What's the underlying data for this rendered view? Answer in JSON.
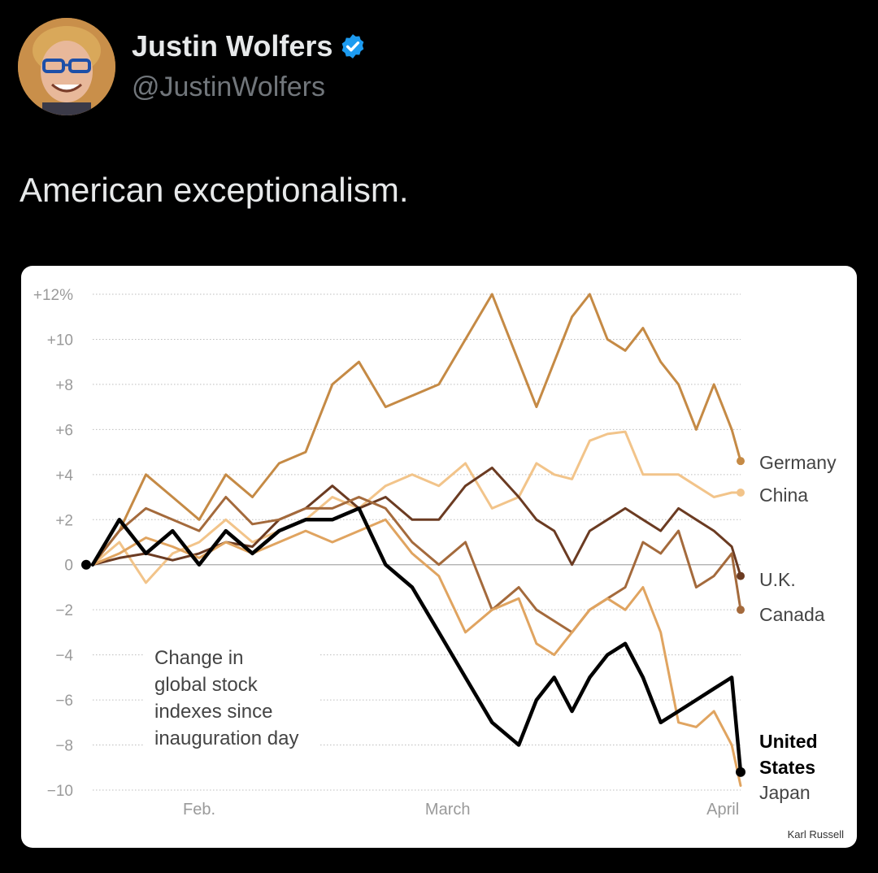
{
  "post": {
    "author_name": "Justin Wolfers",
    "handle": "@JustinWolfers",
    "verified": true,
    "text": "American exceptionalism.",
    "avatar_icon": "profile-photo",
    "verified_icon": "verified-badge-icon"
  },
  "colors": {
    "background": "#000000",
    "text_primary": "#e7e9ea",
    "text_secondary": "#71767b",
    "verified": "#1d9bf0"
  },
  "chart_data": {
    "type": "line",
    "annotation": "Change in global stock indexes since inauguration day",
    "annotation_lines": [
      "Change in",
      "global stock",
      "indexes since",
      "inauguration day"
    ],
    "credit": "Karl Russell",
    "x_ticks": [
      "Feb.",
      "March",
      "April"
    ],
    "y_ticks": [
      "+12%",
      "+10",
      "+8",
      "+6",
      "+4",
      "+2",
      "0",
      "−2",
      "−4",
      "−6",
      "−8",
      "−10"
    ],
    "ylim": [
      -10,
      12
    ],
    "x_range": [
      "2025-01-20",
      "2025-04-03"
    ],
    "grid": true,
    "series": [
      {
        "name": "Germany",
        "color": "#c58a45",
        "width": 3,
        "dot": true,
        "x": [
          "2025-01-20",
          "2025-01-23",
          "2025-01-26",
          "2025-01-29",
          "2025-02-01",
          "2025-02-04",
          "2025-02-07",
          "2025-02-10",
          "2025-02-13",
          "2025-02-16",
          "2025-02-19",
          "2025-02-22",
          "2025-02-25",
          "2025-02-28",
          "2025-03-03",
          "2025-03-06",
          "2025-03-09",
          "2025-03-11",
          "2025-03-13",
          "2025-03-15",
          "2025-03-17",
          "2025-03-19",
          "2025-03-21",
          "2025-03-23",
          "2025-03-25",
          "2025-03-27",
          "2025-03-29",
          "2025-03-31",
          "2025-04-01",
          "2025-04-02",
          "2025-04-03"
        ],
        "y": [
          0,
          1.5,
          4,
          3,
          2,
          4,
          3,
          4.5,
          5,
          8,
          9,
          7,
          7.5,
          8,
          10,
          12,
          9,
          7,
          9,
          11,
          12,
          10,
          9.5,
          10.5,
          9,
          8,
          6,
          8,
          7,
          6,
          4.6
        ]
      },
      {
        "name": "China",
        "color": "#f2c48a",
        "width": 3,
        "dot": true,
        "x": [
          "2025-01-20",
          "2025-01-23",
          "2025-01-26",
          "2025-01-29",
          "2025-02-01",
          "2025-02-04",
          "2025-02-07",
          "2025-02-10",
          "2025-02-13",
          "2025-02-16",
          "2025-02-19",
          "2025-02-22",
          "2025-02-25",
          "2025-02-28",
          "2025-03-03",
          "2025-03-06",
          "2025-03-09",
          "2025-03-11",
          "2025-03-13",
          "2025-03-15",
          "2025-03-17",
          "2025-03-19",
          "2025-03-21",
          "2025-03-23",
          "2025-03-25",
          "2025-03-27",
          "2025-03-29",
          "2025-03-31",
          "2025-04-02",
          "2025-04-03"
        ],
        "y": [
          0,
          1,
          -0.8,
          0.5,
          1,
          2,
          1,
          1.5,
          2,
          3,
          2.5,
          3.5,
          4,
          3.5,
          4.5,
          2.5,
          3,
          4.5,
          4,
          3.8,
          5.5,
          5.8,
          5.9,
          4,
          4,
          4,
          3.5,
          3,
          3.2,
          3.2
        ]
      },
      {
        "name": "U.K.",
        "color": "#6b3b22",
        "width": 3,
        "dot": true,
        "x": [
          "2025-01-20",
          "2025-01-23",
          "2025-01-26",
          "2025-01-29",
          "2025-02-01",
          "2025-02-04",
          "2025-02-07",
          "2025-02-10",
          "2025-02-13",
          "2025-02-16",
          "2025-02-19",
          "2025-02-22",
          "2025-02-25",
          "2025-02-28",
          "2025-03-03",
          "2025-03-06",
          "2025-03-09",
          "2025-03-11",
          "2025-03-13",
          "2025-03-15",
          "2025-03-17",
          "2025-03-19",
          "2025-03-21",
          "2025-03-23",
          "2025-03-25",
          "2025-03-27",
          "2025-03-29",
          "2025-03-31",
          "2025-04-02",
          "2025-04-03"
        ],
        "y": [
          0,
          0.3,
          0.5,
          0.2,
          0.5,
          1,
          0.8,
          2,
          2.5,
          3.5,
          2.5,
          3,
          2,
          2,
          3.5,
          4.3,
          3,
          2,
          1.5,
          0,
          1.5,
          2,
          2.5,
          2,
          1.5,
          2.5,
          2,
          1.5,
          0.8,
          -0.5
        ]
      },
      {
        "name": "Canada",
        "color": "#a46a3c",
        "width": 3,
        "dot": true,
        "x": [
          "2025-01-20",
          "2025-01-23",
          "2025-01-26",
          "2025-01-29",
          "2025-02-01",
          "2025-02-04",
          "2025-02-07",
          "2025-02-10",
          "2025-02-13",
          "2025-02-16",
          "2025-02-19",
          "2025-02-22",
          "2025-02-25",
          "2025-02-28",
          "2025-03-03",
          "2025-03-06",
          "2025-03-09",
          "2025-03-11",
          "2025-03-13",
          "2025-03-15",
          "2025-03-17",
          "2025-03-19",
          "2025-03-21",
          "2025-03-23",
          "2025-03-25",
          "2025-03-27",
          "2025-03-29",
          "2025-03-31",
          "2025-04-02",
          "2025-04-03"
        ],
        "y": [
          0,
          1.5,
          2.5,
          2,
          1.5,
          3,
          1.8,
          2,
          2.5,
          2.5,
          3,
          2.5,
          1,
          0,
          1,
          -2,
          -1,
          -2,
          -2.5,
          -3,
          -2,
          -1.5,
          -1,
          1,
          0.5,
          1.5,
          -1,
          -0.5,
          0.5,
          -2
        ]
      },
      {
        "name": "Japan",
        "color": "#e0a460",
        "width": 3,
        "dot": false,
        "x": [
          "2025-01-20",
          "2025-01-23",
          "2025-01-26",
          "2025-01-29",
          "2025-02-01",
          "2025-02-04",
          "2025-02-07",
          "2025-02-10",
          "2025-02-13",
          "2025-02-16",
          "2025-02-19",
          "2025-02-22",
          "2025-02-25",
          "2025-02-28",
          "2025-03-03",
          "2025-03-06",
          "2025-03-09",
          "2025-03-11",
          "2025-03-13",
          "2025-03-15",
          "2025-03-17",
          "2025-03-19",
          "2025-03-21",
          "2025-03-23",
          "2025-03-25",
          "2025-03-27",
          "2025-03-29",
          "2025-03-31",
          "2025-04-02",
          "2025-04-03"
        ],
        "y": [
          0,
          0.5,
          1.2,
          0.8,
          0.3,
          1,
          0.5,
          1,
          1.5,
          1,
          1.5,
          2,
          0.5,
          -0.5,
          -3,
          -2,
          -1.5,
          -3.5,
          -4,
          -3,
          -2,
          -1.5,
          -2,
          -1,
          -3,
          -7,
          -7.2,
          -6.5,
          -8,
          -9.8
        ]
      },
      {
        "name": "United States",
        "color": "#000000",
        "width": 4.5,
        "dot": true,
        "x": [
          "2025-01-20",
          "2025-01-23",
          "2025-01-26",
          "2025-01-29",
          "2025-02-01",
          "2025-02-04",
          "2025-02-07",
          "2025-02-10",
          "2025-02-13",
          "2025-02-16",
          "2025-02-19",
          "2025-02-22",
          "2025-02-25",
          "2025-02-28",
          "2025-03-03",
          "2025-03-06",
          "2025-03-09",
          "2025-03-11",
          "2025-03-13",
          "2025-03-15",
          "2025-03-17",
          "2025-03-19",
          "2025-03-21",
          "2025-03-23",
          "2025-03-25",
          "2025-03-27",
          "2025-03-29",
          "2025-03-31",
          "2025-04-02",
          "2025-04-03"
        ],
        "y": [
          0,
          2,
          0.5,
          1.5,
          0,
          1.5,
          0.5,
          1.5,
          2,
          2,
          2.5,
          0,
          -1,
          -3,
          -5,
          -7,
          -8,
          -6,
          -5,
          -6.5,
          -5,
          -4,
          -3.5,
          -5,
          -7,
          -6.5,
          -6,
          -5.5,
          -5,
          -9.2
        ]
      }
    ]
  }
}
